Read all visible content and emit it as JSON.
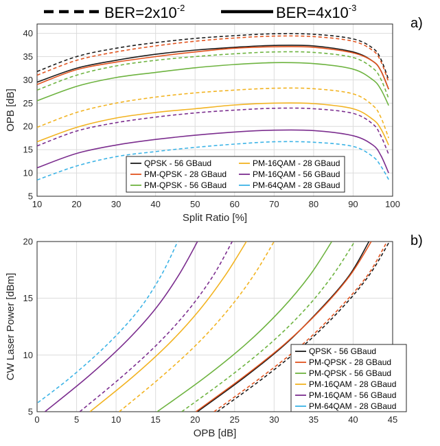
{
  "top_legend": {
    "dashed_label": "BER=2x10",
    "dashed_exp": "-2",
    "solid_label": "BER=4x10",
    "solid_exp": "-3"
  },
  "colors": {
    "QPSK - 56 GBaud": "#1a1a1a",
    "PM-QPSK - 28 GBaud": "#e2531e",
    "PM-QPSK - 56 GBaud": "#6db33f",
    "PM-16QAM - 28 GBaud": "#f2b320",
    "PM-16QAM - 56 GBaud": "#7b2d8e",
    "PM-64QAM - 28 GBaud": "#3bb3e6"
  },
  "chart_data": [
    {
      "type": "line",
      "panel_label": "a)",
      "xlabel": "Split Ratio [%]",
      "ylabel": "OPB [dB]",
      "xlim": [
        10,
        100
      ],
      "ylim": [
        5,
        42
      ],
      "xticks": [
        10,
        20,
        30,
        40,
        50,
        60,
        70,
        80,
        90,
        100
      ],
      "yticks": [
        5,
        10,
        15,
        20,
        25,
        30,
        35,
        40
      ],
      "grid": true,
      "legend_placement": "bottom-center",
      "x": [
        10,
        20,
        30,
        40,
        50,
        60,
        70,
        80,
        90,
        95,
        97,
        99
      ],
      "series": [
        {
          "name": "QPSK - 56 GBaud",
          "style": "solid",
          "values": [
            29.5,
            32.5,
            34.2,
            35.5,
            36.4,
            37.0,
            37.4,
            37.3,
            36.0,
            34.0,
            32.0,
            28.0
          ]
        },
        {
          "name": "PM-QPSK - 28 GBaud",
          "style": "solid",
          "values": [
            29.0,
            32.2,
            33.8,
            35.0,
            36.0,
            36.8,
            37.1,
            37.0,
            35.8,
            34.0,
            32.0,
            28.0
          ]
        },
        {
          "name": "PM-QPSK - 56 GBaud",
          "style": "solid",
          "values": [
            25.5,
            28.6,
            30.5,
            31.6,
            32.6,
            33.3,
            33.7,
            33.5,
            32.3,
            30.0,
            28.0,
            24.5
          ]
        },
        {
          "name": "PM-16QAM - 28 GBaud",
          "style": "solid",
          "values": [
            16.7,
            19.8,
            21.8,
            23.0,
            23.8,
            24.6,
            25.0,
            24.9,
            23.8,
            21.5,
            19.5,
            16.0
          ]
        },
        {
          "name": "PM-16QAM - 56 GBaud",
          "style": "solid",
          "values": [
            11.1,
            14.2,
            16.0,
            17.2,
            18.1,
            18.8,
            19.2,
            19.1,
            18.0,
            16.0,
            13.8,
            10.0
          ]
        },
        {
          "name": "QPSK - 56 GBaud",
          "style": "dashed",
          "values": [
            31.8,
            35.0,
            36.8,
            38.0,
            38.9,
            39.5,
            39.9,
            39.8,
            38.8,
            36.8,
            34.5,
            30.0
          ]
        },
        {
          "name": "PM-QPSK - 28 GBaud",
          "style": "dashed",
          "values": [
            31.0,
            34.2,
            36.0,
            37.3,
            38.3,
            39.0,
            39.4,
            39.3,
            38.3,
            36.3,
            34.0,
            29.5
          ]
        },
        {
          "name": "PM-QPSK - 56 GBaud",
          "style": "dashed",
          "values": [
            27.8,
            31.0,
            33.0,
            34.2,
            35.0,
            35.6,
            36.0,
            35.9,
            34.8,
            32.5,
            30.2,
            26.0
          ]
        },
        {
          "name": "PM-16QAM - 28 GBaud",
          "style": "dashed",
          "values": [
            19.8,
            23.0,
            25.0,
            26.3,
            27.2,
            27.8,
            28.2,
            28.1,
            27.0,
            24.5,
            22.0,
            17.5
          ]
        },
        {
          "name": "PM-16QAM - 56 GBaud",
          "style": "dashed",
          "values": [
            15.8,
            19.0,
            20.8,
            22.0,
            22.9,
            23.5,
            23.9,
            23.8,
            22.8,
            20.5,
            18.0,
            14.0
          ]
        },
        {
          "name": "PM-64QAM - 28 GBaud",
          "style": "dashed",
          "values": [
            8.5,
            11.5,
            13.5,
            14.6,
            15.5,
            16.2,
            16.7,
            16.6,
            15.7,
            13.5,
            11.5,
            8.6
          ]
        }
      ],
      "legend": [
        "QPSK - 56 GBaud",
        "PM-16QAM - 28 GBaud",
        "PM-QPSK - 28 GBaud",
        "PM-16QAM - 56 GBaud",
        "PM-QPSK - 56 GBaud",
        "PM-64QAM - 28 GBaud"
      ]
    },
    {
      "type": "line",
      "panel_label": "b)",
      "xlabel": "OPB [dB]",
      "ylabel": "CW Laser Power [dBm]",
      "xlim": [
        0,
        45
      ],
      "ylim": [
        5,
        20
      ],
      "xticks": [
        0,
        5,
        10,
        15,
        20,
        25,
        30,
        35,
        40,
        45
      ],
      "yticks": [
        5,
        10,
        15,
        20
      ],
      "grid": true,
      "legend_placement": "bottom-right",
      "series": [
        {
          "name": "QPSK - 56 GBaud",
          "style": "solid",
          "points": [
            [
              20.3,
              5
            ],
            [
              26.2,
              8
            ],
            [
              31.5,
              11
            ],
            [
              35.8,
              14
            ],
            [
              39.5,
              17
            ],
            [
              42.0,
              20
            ]
          ]
        },
        {
          "name": "PM-QPSK - 28 GBaud",
          "style": "solid",
          "points": [
            [
              20.1,
              5
            ],
            [
              26.0,
              8
            ],
            [
              31.4,
              11
            ],
            [
              35.9,
              14
            ],
            [
              39.6,
              17
            ],
            [
              42.3,
              20
            ]
          ]
        },
        {
          "name": "PM-QPSK - 56 GBaud",
          "style": "solid",
          "points": [
            [
              15.2,
              5
            ],
            [
              21.2,
              8
            ],
            [
              26.5,
              11
            ],
            [
              30.9,
              14
            ],
            [
              34.5,
              17
            ],
            [
              37.3,
              20
            ]
          ]
        },
        {
          "name": "PM-16QAM - 28 GBaud",
          "style": "solid",
          "points": [
            [
              6.7,
              5
            ],
            [
              12.0,
              8
            ],
            [
              16.7,
              11
            ],
            [
              20.6,
              14
            ],
            [
              23.8,
              17
            ],
            [
              26.5,
              20
            ]
          ]
        },
        {
          "name": "PM-16QAM - 56 GBaud",
          "style": "solid",
          "points": [
            [
              1.0,
              5
            ],
            [
              6.3,
              8
            ],
            [
              11.0,
              11
            ],
            [
              14.9,
              14
            ],
            [
              17.9,
              17
            ],
            [
              20.3,
              20
            ]
          ]
        },
        {
          "name": "QPSK - 56 GBaud",
          "style": "dashed",
          "points": [
            [
              22.8,
              5
            ],
            [
              28.7,
              8
            ],
            [
              34.0,
              11
            ],
            [
              38.4,
              14
            ],
            [
              42.0,
              17
            ],
            [
              44.6,
              20
            ]
          ]
        },
        {
          "name": "PM-QPSK - 28 GBaud",
          "style": "dashed",
          "points": [
            [
              22.4,
              5
            ],
            [
              28.3,
              8
            ],
            [
              33.7,
              11
            ],
            [
              38.1,
              14
            ],
            [
              41.8,
              17
            ],
            [
              44.3,
              20
            ]
          ]
        },
        {
          "name": "PM-QPSK - 56 GBaud",
          "style": "dashed",
          "points": [
            [
              18.3,
              5
            ],
            [
              24.2,
              8
            ],
            [
              29.5,
              11
            ],
            [
              33.9,
              14
            ],
            [
              37.4,
              17
            ],
            [
              40.2,
              20
            ]
          ]
        },
        {
          "name": "PM-16QAM - 28 GBaud",
          "style": "dashed",
          "points": [
            [
              10.4,
              5
            ],
            [
              15.6,
              8
            ],
            [
              20.3,
              11
            ],
            [
              24.2,
              14
            ],
            [
              27.4,
              17
            ],
            [
              30.0,
              20
            ]
          ]
        },
        {
          "name": "PM-16QAM - 56 GBaud",
          "style": "dashed",
          "points": [
            [
              5.4,
              5
            ],
            [
              10.6,
              8
            ],
            [
              15.3,
              11
            ],
            [
              19.2,
              14
            ],
            [
              22.3,
              17
            ],
            [
              24.7,
              20
            ]
          ]
        },
        {
          "name": "PM-64QAM - 28 GBaud",
          "style": "dashed",
          "points": [
            [
              0.1,
              5.8
            ],
            [
              4.2,
              8
            ],
            [
              9.0,
              11
            ],
            [
              12.9,
              14
            ],
            [
              15.7,
              17
            ],
            [
              17.8,
              20
            ]
          ]
        }
      ],
      "legend": [
        "QPSK - 56 GBaud",
        "PM-QPSK - 28 GBaud",
        "PM-QPSK - 56 GBaud",
        "PM-16QAM - 28 GBaud",
        "PM-16QAM - 56 GBaud",
        "PM-64QAM - 28 GBaud"
      ]
    }
  ]
}
